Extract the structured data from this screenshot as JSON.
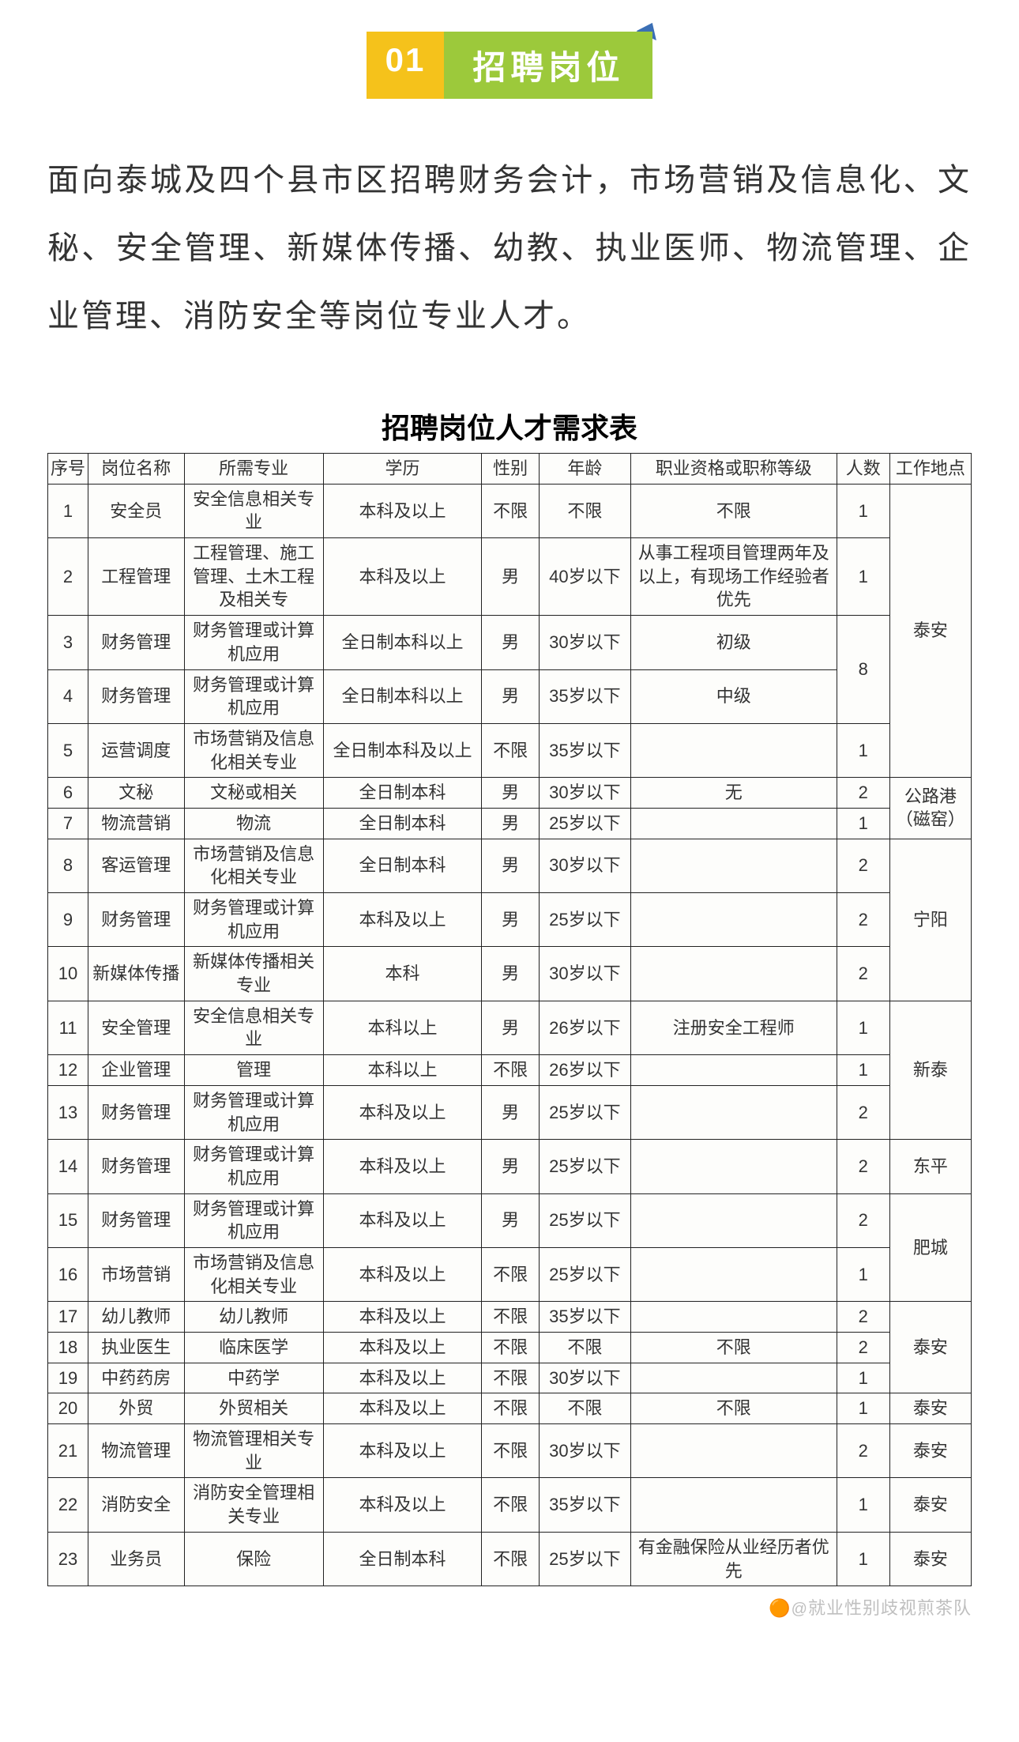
{
  "header": {
    "number": "01",
    "title": "招聘岗位"
  },
  "intro": "面向泰城及四个县市区招聘财务会计，市场营销及信息化、文秘、安全管理、新媒体传播、幼教、执业医师、物流管理、企业管理、消防安全等岗位专业人才。",
  "table": {
    "title": "招聘岗位人才需求表",
    "columns": [
      "序号",
      "岗位名称",
      "所需专业",
      "学历",
      "性别",
      "年龄",
      "职业资格或职称等级",
      "人数",
      "工作地点"
    ],
    "rows": [
      {
        "idx": "1",
        "name": "安全员",
        "major": "安全信息相关专业",
        "edu": "本科及以上",
        "sex": "不限",
        "age": "不限",
        "qual": "不限",
        "cnt": "1"
      },
      {
        "idx": "2",
        "name": "工程管理",
        "major": "工程管理、施工管理、土木工程及相关专",
        "edu": "本科及以上",
        "sex": "男",
        "age": "40岁以下",
        "qual": "从事工程项目管理两年及以上，有现场工作经验者优先",
        "cnt": "1"
      },
      {
        "idx": "3",
        "name": "财务管理",
        "major": "财务管理或计算机应用",
        "edu": "全日制本科以上",
        "sex": "男",
        "age": "30岁以下",
        "qual": "初级"
      },
      {
        "idx": "4",
        "name": "财务管理",
        "major": "财务管理或计算机应用",
        "edu": "全日制本科以上",
        "sex": "男",
        "age": "35岁以下",
        "qual": "中级"
      },
      {
        "idx": "5",
        "name": "运营调度",
        "major": "市场营销及信息化相关专业",
        "edu": "全日制本科及以上",
        "sex": "不限",
        "age": "35岁以下",
        "qual": "",
        "cnt": "1"
      },
      {
        "idx": "6",
        "name": "文秘",
        "major": "文秘或相关",
        "edu": "全日制本科",
        "sex": "男",
        "age": "30岁以下",
        "qual": "无",
        "cnt": "2"
      },
      {
        "idx": "7",
        "name": "物流营销",
        "major": "物流",
        "edu": "全日制本科",
        "sex": "男",
        "age": "25岁以下",
        "qual": "",
        "cnt": "1"
      },
      {
        "idx": "8",
        "name": "客运管理",
        "major": "市场营销及信息化相关专业",
        "edu": "全日制本科",
        "sex": "男",
        "age": "30岁以下",
        "qual": "",
        "cnt": "2"
      },
      {
        "idx": "9",
        "name": "财务管理",
        "major": "财务管理或计算机应用",
        "edu": "本科及以上",
        "sex": "男",
        "age": "25岁以下",
        "qual": "",
        "cnt": "2"
      },
      {
        "idx": "10",
        "name": "新媒体传播",
        "major": "新媒体传播相关专业",
        "edu": "本科",
        "sex": "男",
        "age": "30岁以下",
        "qual": "",
        "cnt": "2"
      },
      {
        "idx": "11",
        "name": "安全管理",
        "major": "安全信息相关专业",
        "edu": "本科以上",
        "sex": "男",
        "age": "26岁以下",
        "qual": "注册安全工程师",
        "cnt": "1"
      },
      {
        "idx": "12",
        "name": "企业管理",
        "major": "管理",
        "edu": "本科以上",
        "sex": "不限",
        "age": "26岁以下",
        "qual": "",
        "cnt": "1"
      },
      {
        "idx": "13",
        "name": "财务管理",
        "major": "财务管理或计算机应用",
        "edu": "本科及以上",
        "sex": "男",
        "age": "25岁以下",
        "qual": "",
        "cnt": "2"
      },
      {
        "idx": "14",
        "name": "财务管理",
        "major": "财务管理或计算机应用",
        "edu": "本科及以上",
        "sex": "男",
        "age": "25岁以下",
        "qual": "",
        "cnt": "2"
      },
      {
        "idx": "15",
        "name": "财务管理",
        "major": "财务管理或计算机应用",
        "edu": "本科及以上",
        "sex": "男",
        "age": "25岁以下",
        "qual": "",
        "cnt": "2"
      },
      {
        "idx": "16",
        "name": "市场营销",
        "major": "市场营销及信息化相关专业",
        "edu": "本科及以上",
        "sex": "不限",
        "age": "25岁以下",
        "qual": "",
        "cnt": "1"
      },
      {
        "idx": "17",
        "name": "幼儿教师",
        "major": "幼儿教师",
        "edu": "本科及以上",
        "sex": "不限",
        "age": "35岁以下",
        "qual": "",
        "cnt": "2"
      },
      {
        "idx": "18",
        "name": "执业医生",
        "major": "临床医学",
        "edu": "本科及以上",
        "sex": "不限",
        "age": "不限",
        "qual": "不限",
        "cnt": "2"
      },
      {
        "idx": "19",
        "name": "中药药房",
        "major": "中药学",
        "edu": "本科及以上",
        "sex": "不限",
        "age": "30岁以下",
        "qual": "",
        "cnt": "1"
      },
      {
        "idx": "20",
        "name": "外贸",
        "major": "外贸相关",
        "edu": "本科及以上",
        "sex": "不限",
        "age": "不限",
        "qual": "不限",
        "cnt": "1"
      },
      {
        "idx": "21",
        "name": "物流管理",
        "major": "物流管理相关专业",
        "edu": "本科及以上",
        "sex": "不限",
        "age": "30岁以下",
        "qual": "",
        "cnt": "2"
      },
      {
        "idx": "22",
        "name": "消防安全",
        "major": "消防安全管理相关专业",
        "edu": "本科及以上",
        "sex": "不限",
        "age": "35岁以下",
        "qual": "",
        "cnt": "1"
      },
      {
        "idx": "23",
        "name": "业务员",
        "major": "保险",
        "edu": "全日制本科",
        "sex": "不限",
        "age": "25岁以下",
        "qual": "有金融保险从业经历者优先",
        "cnt": "1"
      }
    ],
    "merged_cnt_3_4": "8",
    "locations": {
      "taian_1_5": "泰安",
      "gonglugang_6_7": "公路港（磁窑）",
      "ningyang_8_10": "宁阳",
      "xintai_11_13": "新泰",
      "dongping_14": "东平",
      "feicheng_15_16": "肥城",
      "taian_17_19": "泰安",
      "taian_20": "泰安",
      "taian_21": "泰安",
      "taian_22": "泰安",
      "taian_23": "泰安"
    }
  },
  "watermark": "就业性别歧视煎茶队"
}
